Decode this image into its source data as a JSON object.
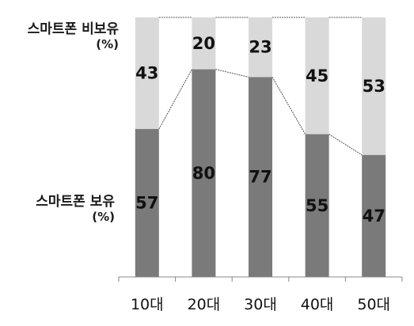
{
  "chart_data": {
    "type": "bar",
    "stacked": true,
    "categories": [
      "10대",
      "20대",
      "30대",
      "40대",
      "50대"
    ],
    "series": [
      {
        "name": "스마트폰 보유",
        "values": [
          57,
          80,
          77,
          55,
          47
        ],
        "color": "#7a7a7a"
      },
      {
        "name": "스마트폰 비보유",
        "values": [
          43,
          20,
          23,
          45,
          53
        ],
        "color": "#d9d9d9"
      }
    ],
    "unit": "(%)",
    "ylim": [
      0,
      100
    ],
    "grid": false,
    "legend": "left, inline labels",
    "connector_lines": true
  }
}
